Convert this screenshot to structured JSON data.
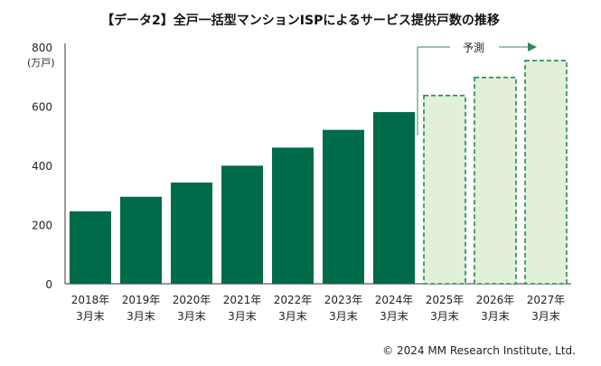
{
  "chart_data": {
    "type": "bar",
    "title": "【データ2】全戸一括型マンションISPによるサービス提供戸数の推移",
    "ylabel": "(万戸)",
    "xlabel": "",
    "ylim": [
      0,
      800
    ],
    "yticks": [
      0,
      200,
      400,
      600,
      800
    ],
    "categories": [
      [
        "2018年",
        "3月末"
      ],
      [
        "2019年",
        "3月末"
      ],
      [
        "2020年",
        "3月末"
      ],
      [
        "2021年",
        "3月末"
      ],
      [
        "2022年",
        "3月末"
      ],
      [
        "2023年",
        "3月末"
      ],
      [
        "2024年",
        "3月末"
      ],
      [
        "2025年",
        "3月末"
      ],
      [
        "2026年",
        "3月末"
      ],
      [
        "2027年",
        "3月末"
      ]
    ],
    "values": [
      245,
      294,
      342,
      399,
      460,
      520,
      580,
      636,
      697,
      754
    ],
    "forecast_from_index": 7,
    "forecast_label": "予測",
    "grid": false,
    "colors": {
      "actual": "#006b4a",
      "forecast_fill": "#e2efd9",
      "forecast_stroke": "#1f8a55",
      "arrow": "#2e8b57",
      "axis": "#333333"
    }
  },
  "footer": {
    "copyright": "© 2024 MM Research Institute, Ltd."
  }
}
